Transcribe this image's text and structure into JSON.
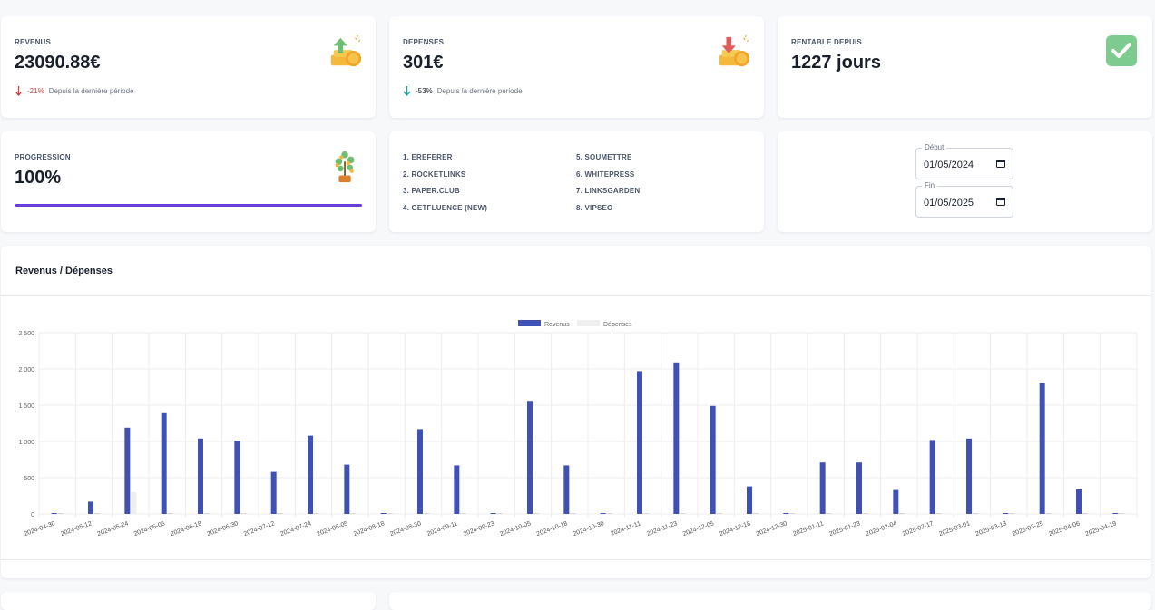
{
  "kpis": {
    "revenus": {
      "label": "REVENUS",
      "value": "23090.88€",
      "trend": "-21%",
      "trend_text": "Depuis la dernière période",
      "icon": "money-up-icon"
    },
    "depenses": {
      "label": "DEPENSES",
      "value": "301€",
      "trend": "-53%",
      "trend_text": "Depuis la dernière période",
      "icon": "money-down-icon"
    },
    "rentable": {
      "label": "RENTABLE DEPUIS",
      "value": "1227 jours",
      "icon": "check-icon"
    },
    "progression": {
      "label": "PROGRESSION",
      "value": "100%",
      "progress_fraction": 1.0,
      "icon": "money-tree-icon"
    }
  },
  "partners": {
    "left": [
      "1. EREFERER",
      "2. ROCKETLINKS",
      "3. PAPER.CLUB",
      "4. GETFLUENCE (NEW)"
    ],
    "right": [
      "5. SOUMETTRE",
      "6. WHITEPRESS",
      "7. LINKSGARDEN",
      "8. VIPSEO"
    ]
  },
  "dates": {
    "debut_label": "Début",
    "debut_value": "01/05/2024",
    "fin_label": "Fin",
    "fin_value": "01/05/2025"
  },
  "chart_title": "Revenus / Dépenses",
  "colors": {
    "revenus": "#3f51b5",
    "depenses": "#eeeeee",
    "progress": "#6c3fd8"
  },
  "chart_data": {
    "type": "bar",
    "categories": [
      "2024-04-30",
      "2024-05-12",
      "2024-05-24",
      "2024-06-05",
      "2024-06-18",
      "2024-06-30",
      "2024-07-12",
      "2024-07-24",
      "2024-08-05",
      "2024-08-18",
      "2024-08-30",
      "2024-09-11",
      "2024-09-23",
      "2024-10-05",
      "2024-10-18",
      "2024-10-30",
      "2024-11-11",
      "2024-11-23",
      "2024-12-05",
      "2024-12-18",
      "2024-12-30",
      "2025-01-11",
      "2025-01-23",
      "2025-02-04",
      "2025-02-17",
      "2025-03-01",
      "2025-03-13",
      "2025-03-25",
      "2025-04-06",
      "2025-04-19"
    ],
    "series": [
      {
        "name": "Revenus",
        "values": [
          0,
          170,
          1190,
          1390,
          1040,
          1010,
          580,
          1080,
          680,
          0,
          1170,
          670,
          0,
          1560,
          670,
          0,
          1970,
          2090,
          1490,
          380,
          0,
          710,
          710,
          330,
          1020,
          1040,
          0,
          1800,
          340,
          0
        ]
      },
      {
        "name": "Dépenses",
        "values": [
          0,
          0,
          301,
          0,
          0,
          0,
          0,
          0,
          0,
          0,
          0,
          0,
          0,
          0,
          0,
          0,
          0,
          0,
          0,
          0,
          0,
          0,
          0,
          0,
          0,
          0,
          0,
          0,
          0,
          0
        ]
      }
    ],
    "yticks": [
      "2 500",
      "2 000",
      "1 500",
      "1 000",
      "500",
      "0"
    ],
    "ylim": [
      0,
      2500
    ],
    "legend_position": "top-center",
    "grid": true
  }
}
